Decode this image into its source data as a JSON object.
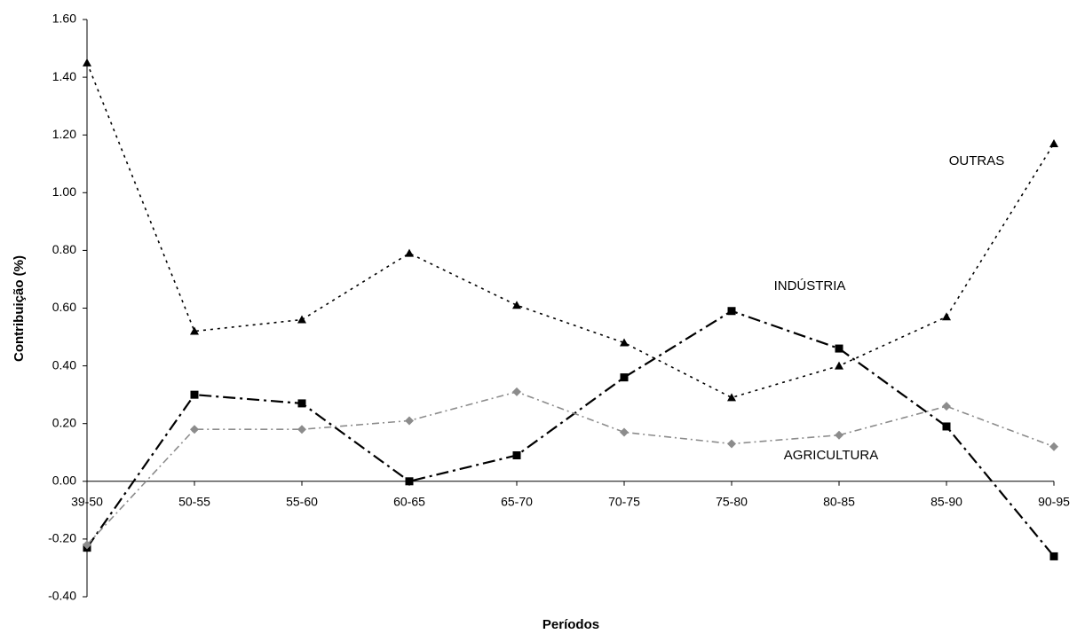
{
  "chart_data": {
    "type": "line",
    "x_label": "Períodos",
    "y_label": "Contribuição (%)",
    "categories": [
      "39-50",
      "50-55",
      "55-60",
      "60-65",
      "65-70",
      "70-75",
      "75-80",
      "80-85",
      "85-90",
      "90-95"
    ],
    "series": [
      {
        "name": "OUTRAS",
        "color": "#000000",
        "marker": "triangle",
        "dash": "3,5",
        "values": [
          1.45,
          0.52,
          0.56,
          0.79,
          0.61,
          0.48,
          0.29,
          0.4,
          0.57,
          1.17
        ]
      },
      {
        "name": "INDÚSTRIA",
        "color": "#000000",
        "marker": "square",
        "dash": "14,5,3,5",
        "values": [
          -0.23,
          0.3,
          0.27,
          0.0,
          0.09,
          0.36,
          0.59,
          0.46,
          0.19,
          -0.26
        ]
      },
      {
        "name": "AGRICULTURA",
        "color": "#8c8c8c",
        "marker": "diamond",
        "dash": "8,4,2,4",
        "values": [
          -0.22,
          0.18,
          0.18,
          0.21,
          0.31,
          0.17,
          0.13,
          0.16,
          0.26,
          0.12
        ]
      }
    ],
    "ylim": [
      -0.4,
      1.6
    ],
    "yticks": [
      {
        "value": -0.4,
        "label": "-0.40"
      },
      {
        "value": -0.2,
        "label": "-0.20"
      },
      {
        "value": 0,
        "label": "0.00"
      },
      {
        "value": 0.2,
        "label": "0.20"
      },
      {
        "value": 0.4,
        "label": "0.40"
      },
      {
        "value": 0.6,
        "label": "0.60"
      },
      {
        "value": 0.8,
        "label": "0.80"
      },
      {
        "value": 1.0,
        "label": "1.00"
      },
      {
        "value": 1.2,
        "label": "1.20"
      },
      {
        "value": 1.4,
        "label": "1.40"
      },
      {
        "value": 1.6,
        "label": "1.60"
      }
    ],
    "grid": false
  }
}
